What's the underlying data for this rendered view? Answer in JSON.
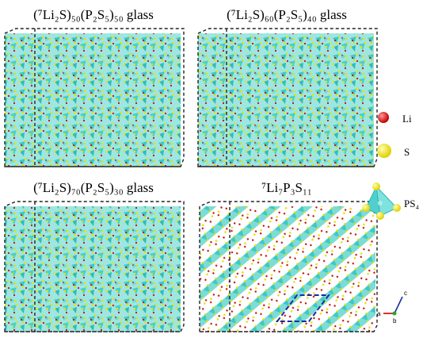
{
  "panels": [
    {
      "title": "(⁷Li₂S)₅₀(P₂S₅)₅₀ glass"
    },
    {
      "title": "(⁷Li₂S)₆₀(P₂S₅)₄₀ glass"
    },
    {
      "title": "(⁷Li₂S)₇₀(P₂S₅)₃₀ glass"
    },
    {
      "title": "⁷Li₇P₃S₁₁"
    }
  ],
  "legend": {
    "items": [
      {
        "label": "Li"
      },
      {
        "label": "S"
      },
      {
        "label": "PS₄"
      }
    ]
  },
  "axes": {
    "a": "a",
    "b": "b",
    "c": "c"
  }
}
